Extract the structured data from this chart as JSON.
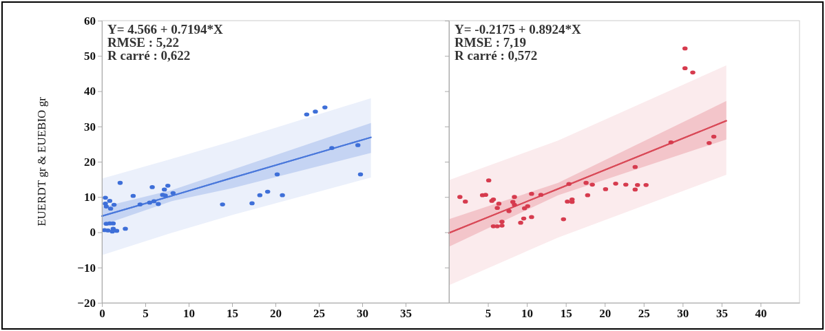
{
  "chart_data": [
    {
      "type": "scatter",
      "ylabel": "EUERDT gr & EUEBIO gr",
      "xlim": [
        0,
        40
      ],
      "xticks": [
        0,
        5,
        10,
        15,
        20,
        25,
        30,
        35
      ],
      "ylim": [
        -20,
        60
      ],
      "yticks": [
        -20,
        -10,
        0,
        10,
        20,
        30,
        40,
        50,
        60
      ],
      "marker": "circle",
      "annotations": [
        "Y= 4.566 + 0.7194*X",
        "RMSE : 5,22",
        "R carré : 0,622"
      ],
      "series": [
        {
          "type": "line",
          "marker": "none",
          "color": "#4a78db",
          "x": [
            0,
            8,
            15,
            31
          ],
          "values": [
            4.6,
            10.3,
            15.4,
            26.9
          ],
          "lower": [
            -6.5,
            -0.2,
            4.9,
            15.5
          ],
          "upper": [
            15.2,
            20.8,
            25.8,
            38.0
          ]
        },
        {
          "type": "line",
          "marker": "none",
          "color": "#4a78db",
          "x": [
            0,
            8,
            15,
            31
          ],
          "values": [
            4.6,
            10.3,
            15.4,
            26.9
          ],
          "lower": [
            2.0,
            8.8,
            12.5,
            22.5
          ],
          "upper": [
            7.1,
            11.9,
            17.7,
            31.0
          ]
        },
        {
          "color": "#3e6fd8",
          "x": [
            0.4,
            0.4,
            0.9,
            0.5,
            1.0,
            1.4,
            2.1,
            3.6,
            4.4,
            5.5,
            6.0,
            5.8,
            6.5,
            7.0,
            7.3,
            7.2,
            7.6,
            8.2,
            13.9,
            17.3,
            18.2,
            19.1,
            20.2,
            20.8,
            23.6,
            24.6,
            25.7,
            26.5,
            29.5,
            29.8,
            0.5,
            1.3,
            0.9,
            0.3,
            0.7,
            1.3,
            1.7,
            2.7,
            1.2
          ],
          "values": [
            9.8,
            8.1,
            8.9,
            7.3,
            6.7,
            7.8,
            14.0,
            10.3,
            7.9,
            8.4,
            8.8,
            12.8,
            8.0,
            10.6,
            10.4,
            12.1,
            13.2,
            11.1,
            7.9,
            8.2,
            10.5,
            11.5,
            16.4,
            10.5,
            33.4,
            34.2,
            35.4,
            23.9,
            24.7,
            16.4,
            2.4,
            2.5,
            2.5,
            0.6,
            0.5,
            1.0,
            0.4,
            1.0,
            0.2
          ]
        }
      ]
    },
    {
      "type": "scatter",
      "xlim": [
        0,
        45
      ],
      "xticks": [
        5,
        10,
        15,
        20,
        25,
        30,
        35,
        40
      ],
      "ylim": [
        -20,
        60
      ],
      "yticks": [
        -20,
        -10,
        0,
        10,
        20,
        30,
        40,
        50,
        60
      ],
      "tick_labels": "x",
      "marker": "circle",
      "annotations": [
        "Y= -0.2175 + 0.8924*X",
        "RMSE : 7,19",
        "R carré : 0,572"
      ],
      "series": [
        {
          "type": "line",
          "marker": "none",
          "color": "#d94a58",
          "x": [
            0,
            14,
            35.6
          ],
          "values": [
            -0.2,
            12.3,
            31.6
          ],
          "lower": [
            -15.0,
            -1.5,
            16.3
          ],
          "upper": [
            14.8,
            26.0,
            47.3
          ]
        },
        {
          "type": "line",
          "marker": "none",
          "color": "#d94a58",
          "x": [
            0,
            14,
            35.6
          ],
          "values": [
            -0.2,
            12.3,
            31.6
          ],
          "lower": [
            -4.1,
            10.5,
            26.3
          ],
          "upper": [
            3.7,
            14.0,
            37.2
          ]
        },
        {
          "color": "#d63b4e",
          "x": [
            1.4,
            2.1,
            5.1,
            4.3,
            4.7,
            5.7,
            5.5,
            6.4,
            6.2,
            8.4,
            8.2,
            8.4,
            7.7,
            6.8,
            5.7,
            6.2,
            6.8,
            9.6,
            9.2,
            10.6,
            9.7,
            10.1,
            10.6,
            11.8,
            14.7,
            15.2,
            15.8,
            15.8,
            15.4,
            17.6,
            18.4,
            17.8,
            20.1,
            21.4,
            22.7,
            24.2,
            25.3,
            23.9,
            23.9,
            28.5,
            33.4,
            34.0,
            30.3,
            30.3,
            31.3
          ],
          "values": [
            10.0,
            8.7,
            14.7,
            10.5,
            10.6,
            9.3,
            8.9,
            8.1,
            6.9,
            10.0,
            8.6,
            7.8,
            6.0,
            3.0,
            1.7,
            1.7,
            1.9,
            3.9,
            2.7,
            4.3,
            6.8,
            7.4,
            10.9,
            10.6,
            3.7,
            8.7,
            9.3,
            8.6,
            13.7,
            14.0,
            13.5,
            10.5,
            12.2,
            13.8,
            13.5,
            13.4,
            13.4,
            12.1,
            18.5,
            25.5,
            25.3,
            27.1,
            52.1,
            46.5,
            45.3
          ]
        }
      ]
    }
  ]
}
